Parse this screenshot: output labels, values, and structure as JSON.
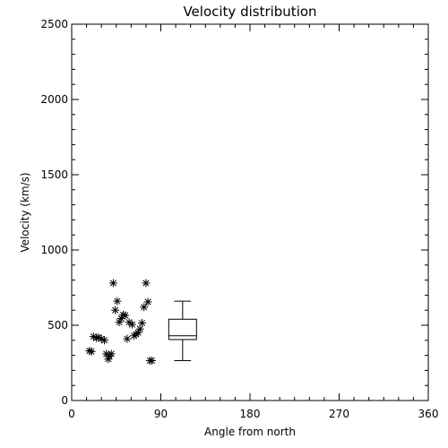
{
  "chart_data": {
    "type": "scatter",
    "title": "Velocity distribution",
    "xlabel": "Angle from north",
    "ylabel": "Velocity (km/s)",
    "xlim": [
      0,
      360
    ],
    "ylim": [
      0,
      2500
    ],
    "xticks": [
      0,
      90,
      180,
      270,
      360
    ],
    "yticks": [
      0,
      500,
      1000,
      1500,
      2000,
      2500
    ],
    "grid": false,
    "marker": "asterisk",
    "points": [
      {
        "x": 18,
        "y": 330
      },
      {
        "x": 20,
        "y": 325
      },
      {
        "x": 22,
        "y": 425
      },
      {
        "x": 25,
        "y": 415
      },
      {
        "x": 27,
        "y": 420
      },
      {
        "x": 30,
        "y": 410
      },
      {
        "x": 33,
        "y": 400
      },
      {
        "x": 35,
        "y": 310
      },
      {
        "x": 37,
        "y": 275
      },
      {
        "x": 38,
        "y": 295
      },
      {
        "x": 40,
        "y": 310
      },
      {
        "x": 42,
        "y": 780
      },
      {
        "x": 44,
        "y": 600
      },
      {
        "x": 46,
        "y": 660
      },
      {
        "x": 48,
        "y": 520
      },
      {
        "x": 50,
        "y": 545
      },
      {
        "x": 52,
        "y": 570
      },
      {
        "x": 54,
        "y": 565
      },
      {
        "x": 56,
        "y": 410
      },
      {
        "x": 58,
        "y": 520
      },
      {
        "x": 61,
        "y": 505
      },
      {
        "x": 63,
        "y": 430
      },
      {
        "x": 65,
        "y": 440
      },
      {
        "x": 67,
        "y": 450
      },
      {
        "x": 69,
        "y": 475
      },
      {
        "x": 71,
        "y": 515
      },
      {
        "x": 73,
        "y": 620
      },
      {
        "x": 75,
        "y": 780
      },
      {
        "x": 77,
        "y": 655
      },
      {
        "x": 79,
        "y": 265
      },
      {
        "x": 81,
        "y": 265
      }
    ],
    "boxplot": {
      "x": 112,
      "half_width": 14,
      "min": 265,
      "q1": 405,
      "median": 430,
      "q3": 540,
      "max": 660
    }
  }
}
